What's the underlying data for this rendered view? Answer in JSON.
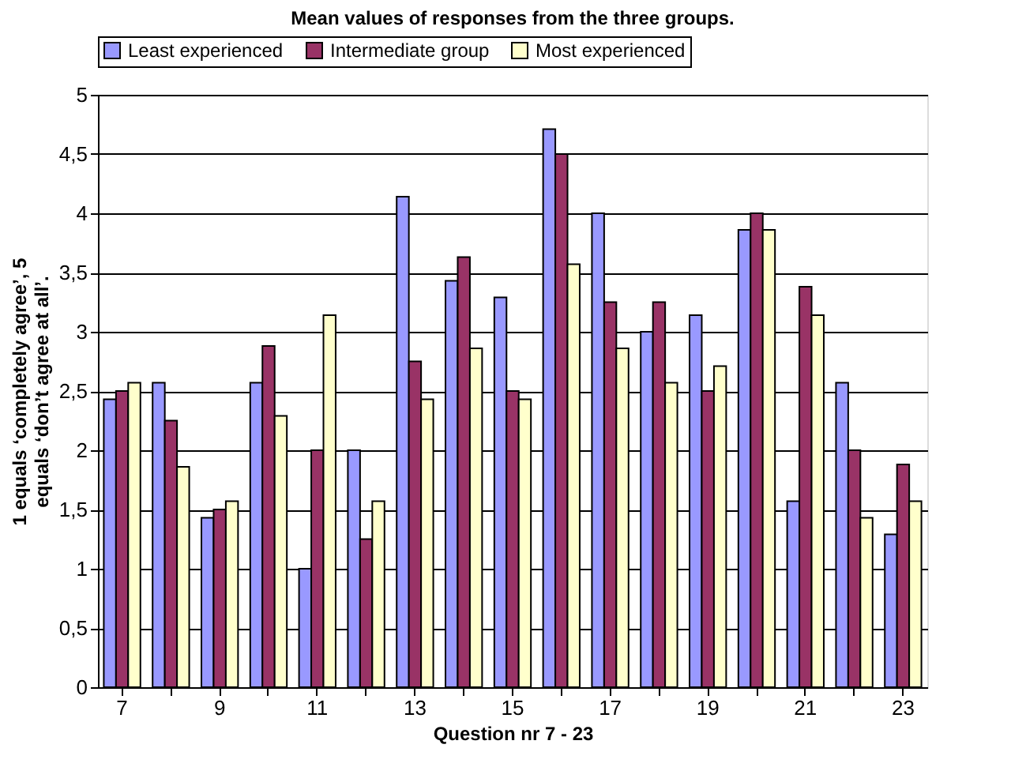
{
  "chart_data": {
    "type": "bar",
    "title": "Mean values of responses from the three groups.",
    "xlabel": "Question nr 7 - 23",
    "ylabel": "1 equals ‘completely agree’, 5 equals ‘don’t agree at all’.",
    "categories": [
      "7",
      null,
      "9",
      null,
      "11",
      null,
      "13",
      null,
      "15",
      null,
      "17",
      null,
      "19",
      null,
      "21",
      null,
      "23"
    ],
    "series": [
      {
        "name": "Least experienced",
        "color": "#9999ff",
        "values": [
          2.43,
          2.57,
          1.43,
          2.57,
          1.0,
          2.0,
          4.14,
          3.43,
          3.29,
          4.71,
          4.0,
          3.0,
          3.14,
          3.86,
          1.57,
          2.57,
          1.29
        ]
      },
      {
        "name": "Intermediate group",
        "color": "#993366",
        "values": [
          2.5,
          2.25,
          1.5,
          2.88,
          2.0,
          1.25,
          2.75,
          3.63,
          2.5,
          4.5,
          3.25,
          3.25,
          2.5,
          4.0,
          3.38,
          2.0,
          1.88
        ]
      },
      {
        "name": "Most experienced",
        "color": "#ffffcc",
        "values": [
          2.57,
          1.86,
          1.57,
          2.29,
          3.14,
          1.57,
          2.43,
          2.86,
          2.43,
          3.57,
          2.86,
          2.57,
          2.71,
          3.86,
          3.14,
          1.43,
          1.57
        ]
      }
    ],
    "ylim": [
      0,
      5
    ],
    "yticks": [
      0,
      {
        "value": 0.5,
        "label": "0,5"
      },
      1,
      {
        "value": 1.5,
        "label": "1,5"
      },
      2,
      {
        "value": 2.5,
        "label": "2,5"
      },
      3,
      {
        "value": 3.5,
        "label": "3,5"
      },
      4,
      {
        "value": 4.5,
        "label": "4,5"
      },
      5
    ],
    "grid": "y",
    "legend": "top"
  }
}
